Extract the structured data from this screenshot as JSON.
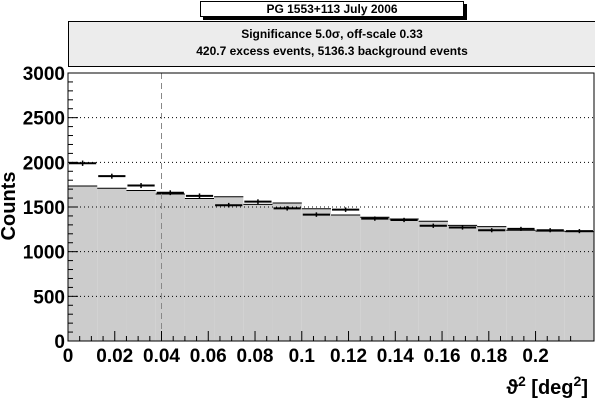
{
  "title": "PG 1553+113  July 2006",
  "info": {
    "line1": "Significance 5.0σ,  off-scale 0.33",
    "line2": "420.7 excess events,  5136.3 background events"
  },
  "colors": {
    "background_fill": "#cccccc",
    "signal_marker": "#000000",
    "grid": "#000000"
  },
  "chart_data": {
    "type": "bar",
    "title": "PG 1553+113  July 2006",
    "xlabel": "ϑ² [deg²]",
    "ylabel": "Counts",
    "xlim": [
      0,
      0.225
    ],
    "ylim": [
      0,
      3000
    ],
    "bin_width": 0.0125,
    "x_ticks": [
      0,
      0.02,
      0.04,
      0.06,
      0.08,
      0.1,
      0.12,
      0.14,
      0.16,
      0.18,
      0.2
    ],
    "x_tick_labels": [
      "0",
      "0.02",
      "0.04",
      "0.06",
      "0.08",
      "0.1",
      "0.12",
      "0.14",
      "0.16",
      "0.18",
      "0.2"
    ],
    "y_ticks": [
      0,
      500,
      1000,
      1500,
      2000,
      2500,
      3000
    ],
    "y_tick_labels": [
      "0",
      "500",
      "1000",
      "1500",
      "2000",
      "2500",
      "3000"
    ],
    "grid": "horizontal dotted",
    "cut_line_x": 0.04,
    "series": [
      {
        "role": "background",
        "style": "filled-histogram",
        "values": [
          1735,
          1710,
          1685,
          1645,
          1595,
          1615,
          1530,
          1545,
          1480,
          1410,
          1385,
          1365,
          1340,
          1295,
          1280,
          1240,
          1230,
          1225
        ]
      },
      {
        "role": "signal",
        "style": "data-points-with-errors",
        "values": [
          1990,
          1845,
          1740,
          1660,
          1625,
          1520,
          1560,
          1485,
          1415,
          1470,
          1370,
          1355,
          1290,
          1270,
          1240,
          1255,
          1240,
          1230
        ],
        "errors": [
          30,
          28,
          28,
          27,
          27,
          26,
          26,
          25,
          25,
          25,
          24,
          24,
          24,
          23,
          23,
          23,
          23,
          23
        ]
      }
    ]
  }
}
